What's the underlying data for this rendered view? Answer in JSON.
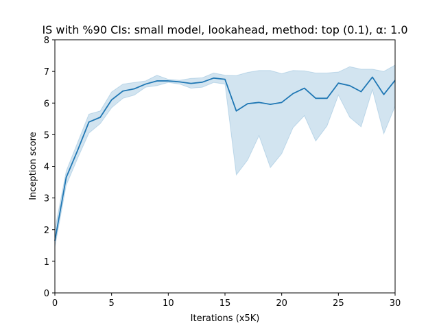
{
  "chart_data": {
    "type": "line",
    "title": "IS with %90 CIs: small model, lookahead, method: top (0.1), α: 1.0",
    "xlabel": "Iterations (x5K)",
    "ylabel": "Inception score",
    "xlim": [
      0,
      30
    ],
    "ylim": [
      0,
      8
    ],
    "xticks": [
      0,
      5,
      10,
      15,
      20,
      25,
      30
    ],
    "yticks": [
      0,
      1,
      2,
      3,
      4,
      5,
      6,
      7,
      8
    ],
    "grid": false,
    "legend": "none",
    "colors": {
      "line": "#1f77b4",
      "band": "#1f77b4"
    },
    "series": [
      {
        "x": [
          0,
          1,
          2,
          3,
          4,
          5,
          6,
          7,
          8,
          9,
          10,
          11,
          12,
          13,
          14,
          15,
          16,
          17,
          18,
          19,
          20,
          21,
          22,
          23,
          24,
          25,
          26,
          27,
          28,
          29,
          30
        ],
        "values": [
          1.65,
          3.65,
          4.5,
          5.4,
          5.55,
          6.1,
          6.38,
          6.45,
          6.6,
          6.7,
          6.7,
          6.67,
          6.62,
          6.66,
          6.79,
          6.75,
          5.75,
          5.98,
          6.02,
          5.96,
          6.02,
          6.3,
          6.47,
          6.15,
          6.15,
          6.63,
          6.55,
          6.36,
          6.82,
          6.27,
          6.72
        ],
        "ci_lower": [
          1.45,
          3.4,
          4.25,
          5.05,
          5.35,
          5.85,
          6.15,
          6.25,
          6.5,
          6.55,
          6.65,
          6.6,
          6.47,
          6.5,
          6.65,
          6.6,
          3.73,
          4.2,
          4.97,
          3.96,
          4.4,
          5.22,
          5.6,
          4.8,
          5.28,
          6.25,
          5.55,
          5.25,
          6.42,
          5.03,
          5.9
        ],
        "ci_upper": [
          2.0,
          3.85,
          4.75,
          5.65,
          5.75,
          6.35,
          6.6,
          6.65,
          6.7,
          6.88,
          6.75,
          6.72,
          6.78,
          6.8,
          6.95,
          6.88,
          6.87,
          6.97,
          7.03,
          7.03,
          6.93,
          7.03,
          7.02,
          6.95,
          6.95,
          6.98,
          7.15,
          7.07,
          7.07,
          7.0,
          7.2
        ]
      }
    ]
  }
}
